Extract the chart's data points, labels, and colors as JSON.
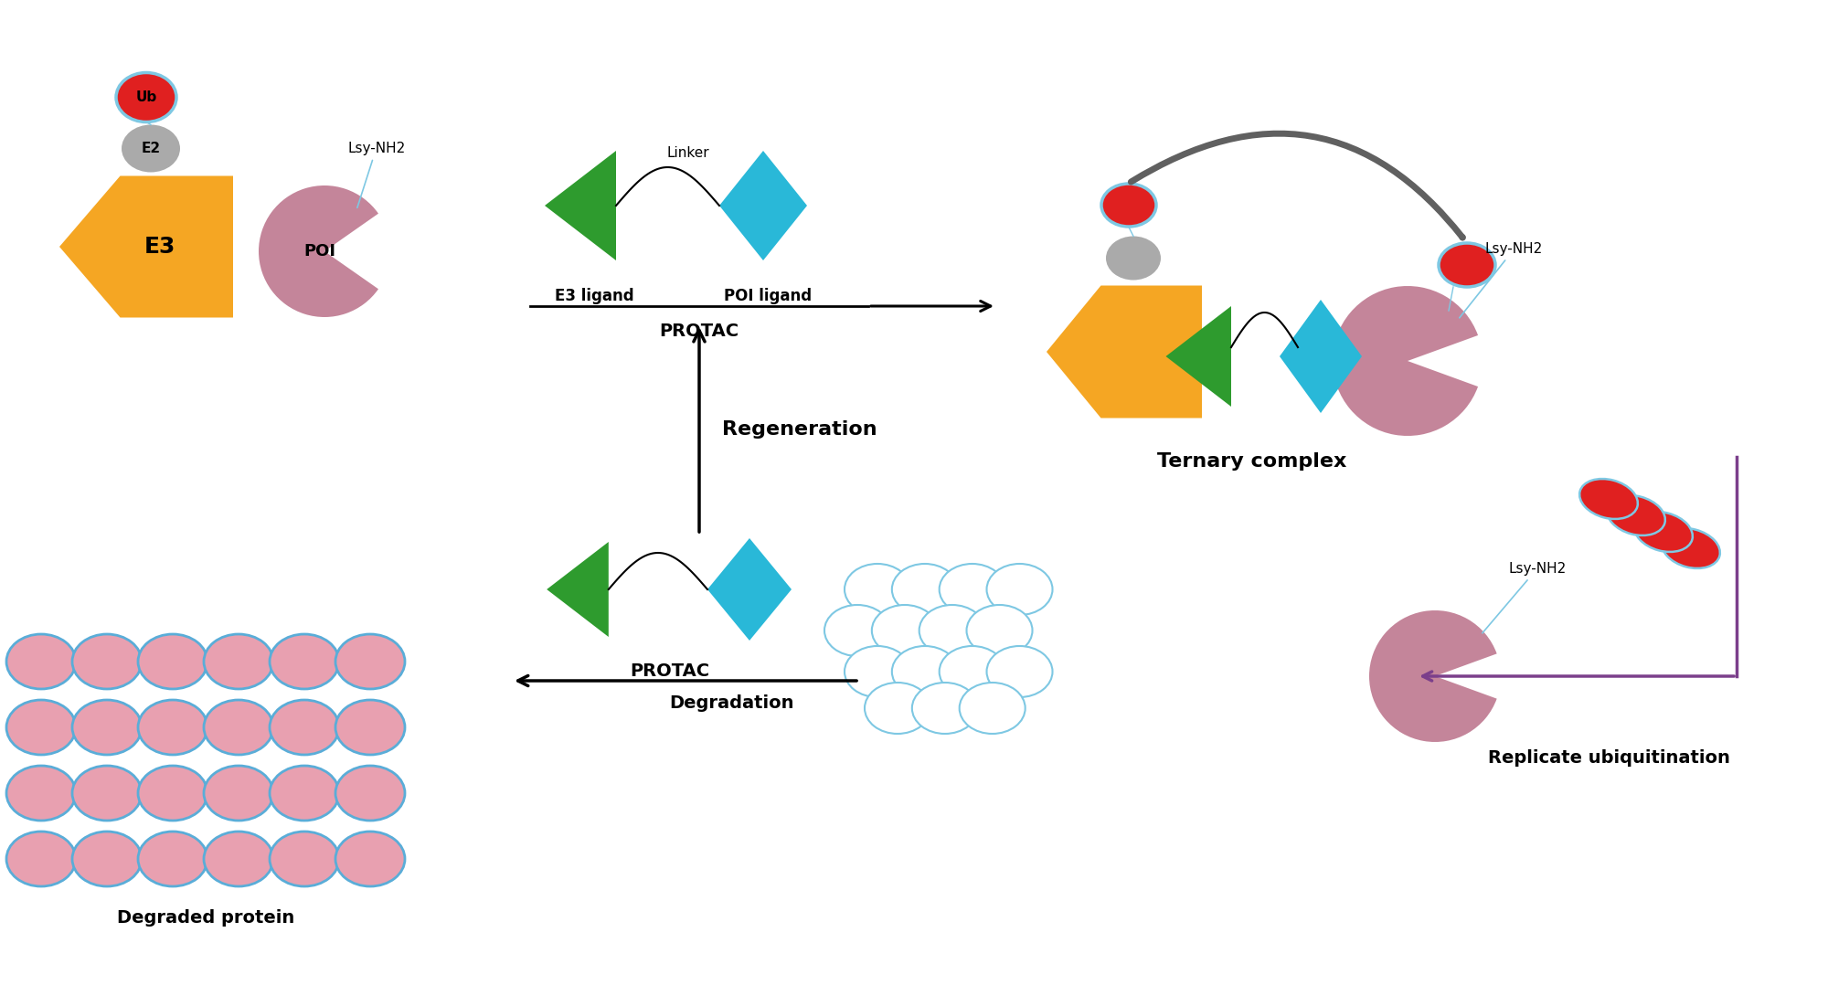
{
  "bg_color": "#ffffff",
  "orange_color": "#F5A623",
  "pink_color": "#C4859A",
  "red_color": "#E02020",
  "green_color": "#2E9B2E",
  "blue_color": "#29B8D8",
  "gray_color": "#AAAAAA",
  "dark_gray": "#606060",
  "purple_color": "#7B3F8B",
  "light_blue_border": "#7EC8E3",
  "degraded_fill": "#E8A0B0",
  "degraded_edge": "#5AADD8",
  "labels": {
    "E3": "E3",
    "E2": "E2",
    "Ub": "Ub",
    "POI": "POI",
    "lsy1": "Lsy-NH2",
    "lsy2": "Lsy-NH2",
    "lsy3": "Lsy-NH2",
    "linker": "Linker",
    "e3_ligand": "E3 ligand",
    "poi_ligand": "POI ligand",
    "protac_top": "PROTAC",
    "protac_mid": "PROTAC",
    "ternary": "Ternary complex",
    "regeneration": "Regeneration",
    "degradation": "Degradation",
    "degraded_protein": "Degraded protein",
    "replicate": "Replicate ubiquitination"
  },
  "fig_w": 20.0,
  "fig_h": 10.9,
  "xlim": [
    0,
    20
  ],
  "ylim": [
    0,
    10.9
  ]
}
